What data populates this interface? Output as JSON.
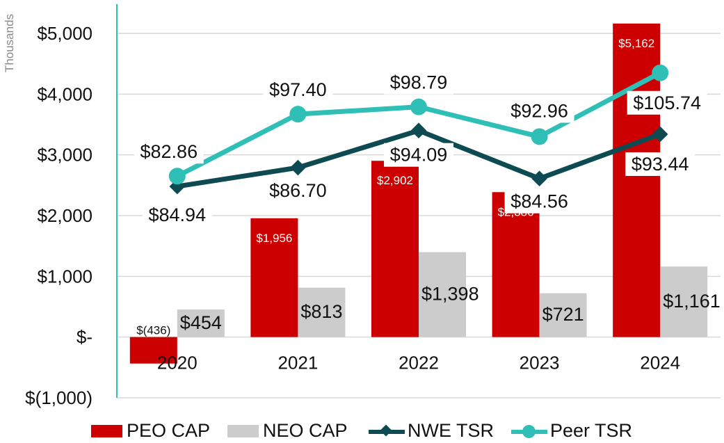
{
  "chart_data": {
    "type": "bar",
    "y_unit_label": "Thousands",
    "categories": [
      "2020",
      "2021",
      "2022",
      "2023",
      "2024"
    ],
    "ylim": [
      -1000,
      5000
    ],
    "yticks": [
      -1000,
      0,
      1000,
      2000,
      3000,
      4000,
      5000
    ],
    "ytick_labels": [
      "$(1,000)",
      "$-",
      "$1,000",
      "$2,000",
      "$3,000",
      "$4,000",
      "$5,000"
    ],
    "grid": true,
    "legend_position": "bottom",
    "series": [
      {
        "name": "PEO CAP",
        "kind": "bar",
        "color": "#cc0000",
        "values": [
          -436,
          1956,
          2902,
          2386,
          5162
        ],
        "labels": [
          "$(436)",
          "$1,956",
          "$2,902",
          "$2,386",
          "$5,162"
        ]
      },
      {
        "name": "NEO CAP",
        "kind": "bar",
        "color": "#cccccc",
        "values": [
          454,
          813,
          1398,
          721,
          1161
        ],
        "labels": [
          "$454",
          "$813",
          "$1,398",
          "$721",
          "$1,161"
        ]
      },
      {
        "name": "NWE TSR",
        "kind": "line",
        "marker": "diamond",
        "color": "#0d4a52",
        "values": [
          84.94,
          86.7,
          94.09,
          84.56,
          93.44
        ],
        "labels": [
          "$84.94",
          "$86.70",
          "$94.09",
          "$84.56",
          "$93.44"
        ]
      },
      {
        "name": "Peer TSR",
        "kind": "line",
        "marker": "circle",
        "color": "#2fbfb7",
        "values": [
          82.86,
          97.4,
          98.79,
          92.96,
          105.74
        ],
        "labels": [
          "$82.86",
          "$97.40",
          "$98.79",
          "$92.96",
          "$105.74"
        ]
      }
    ],
    "line_series_plot_positions_in_bar_axis_units": {
      "NWE TSR": [
        2480,
        2790,
        3400,
        2610,
        3340
      ],
      "Peer TSR": [
        2650,
        3670,
        3790,
        3300,
        4350
      ]
    }
  }
}
